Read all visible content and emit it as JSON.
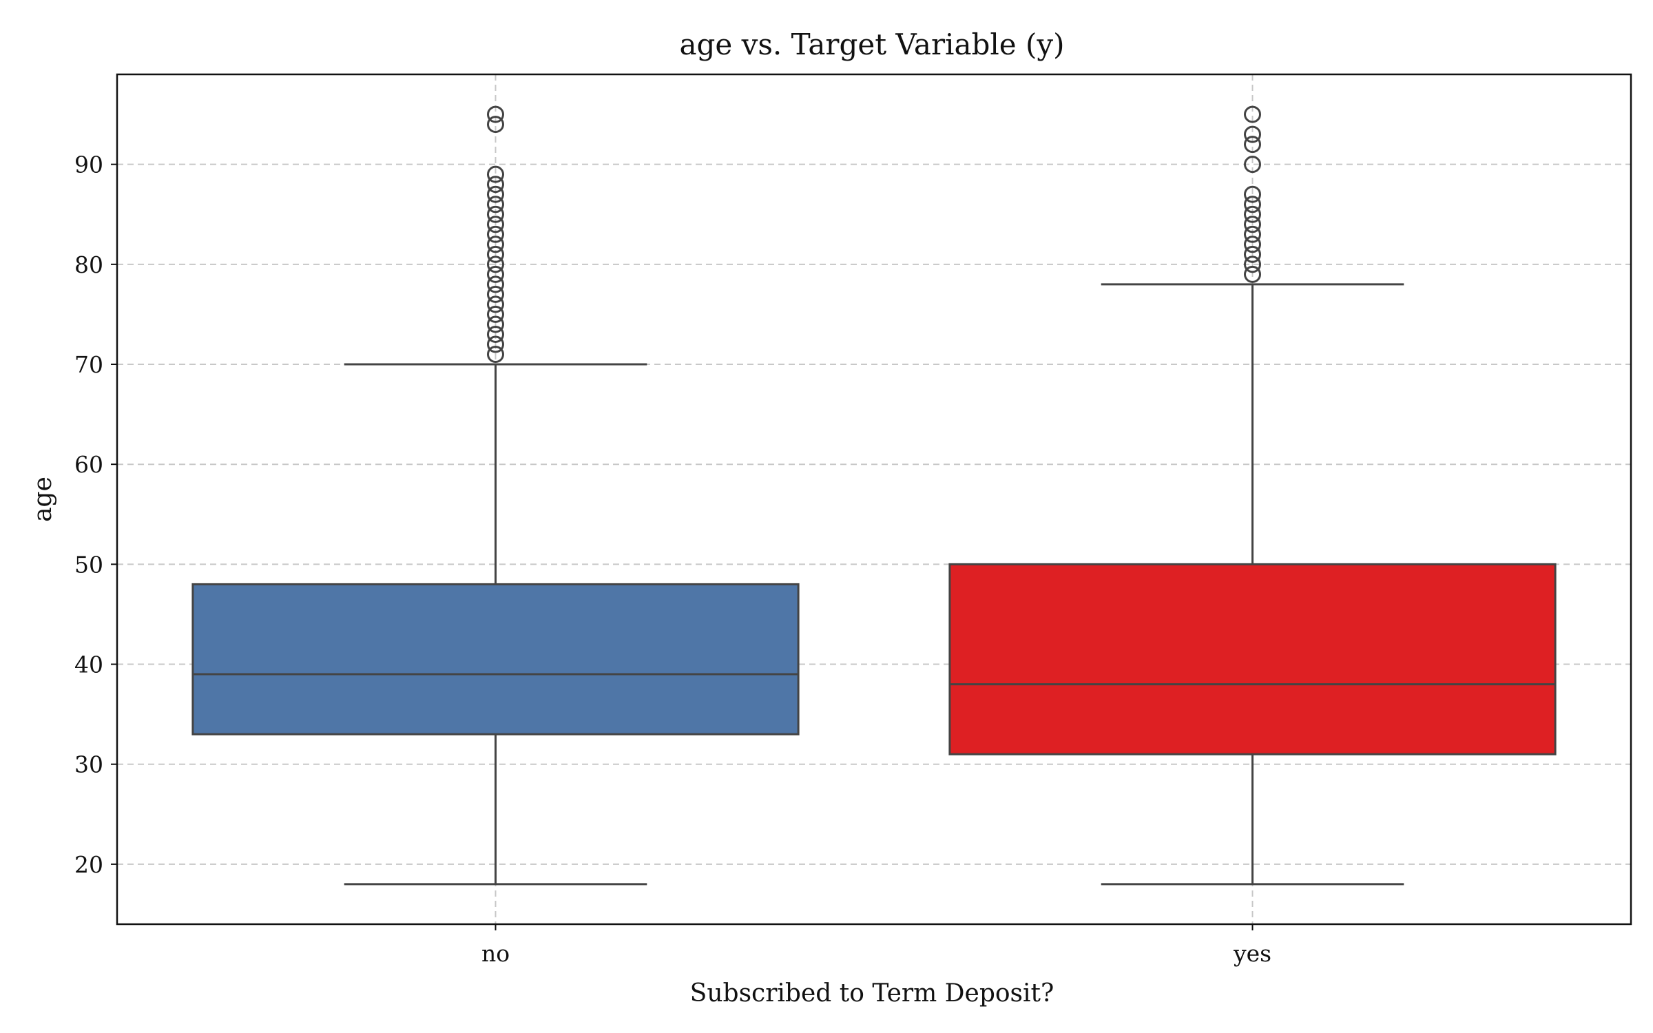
{
  "chart_data": {
    "type": "box",
    "title": "age vs. Target Variable (y)",
    "xlabel": "Subscribed to Term Deposit?",
    "ylabel": "age",
    "ylim": [
      14,
      99
    ],
    "yticks": [
      20,
      30,
      40,
      50,
      60,
      70,
      80,
      90
    ],
    "ytick_labels": [
      "20",
      "30",
      "40",
      "50",
      "60",
      "70",
      "80",
      "90"
    ],
    "grid": true,
    "categories": [
      "no",
      "yes"
    ],
    "boxes": [
      {
        "category": "no",
        "color": "#4f76a7",
        "whisker_low": 18,
        "q1": 33,
        "median": 39,
        "q3": 48,
        "whisker_high": 70,
        "outliers": [
          71,
          72,
          73,
          74,
          75,
          76,
          77,
          78,
          79,
          80,
          81,
          82,
          83,
          84,
          85,
          86,
          87,
          88,
          89,
          94,
          95
        ]
      },
      {
        "category": "yes",
        "color": "#de2023",
        "whisker_low": 18,
        "q1": 31,
        "median": 38,
        "q3": 50,
        "whisker_high": 78,
        "outliers": [
          79,
          80,
          81,
          82,
          83,
          84,
          85,
          86,
          87,
          90,
          92,
          93,
          95
        ]
      }
    ]
  }
}
